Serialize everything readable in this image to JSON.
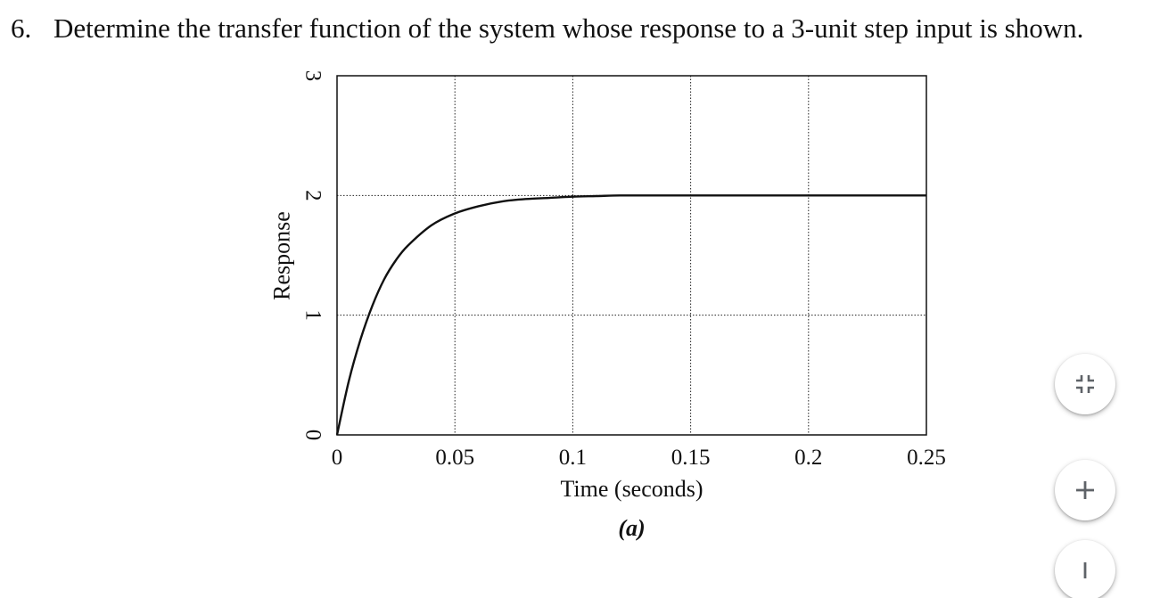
{
  "question": {
    "number": "6.",
    "text": "Determine the transfer function of the system whose response to a 3-unit step input is shown."
  },
  "chart_data": {
    "type": "line",
    "title": "",
    "xlabel": "Time (seconds)",
    "ylabel": "Response",
    "sublabel": "(a)",
    "xlim": [
      0,
      0.25
    ],
    "ylim": [
      0,
      3
    ],
    "x_ticks": [
      "0",
      "0.05",
      "0.1",
      "0.15",
      "0.2",
      "0.25"
    ],
    "y_ticks": [
      "0",
      "1",
      "2",
      "3"
    ],
    "grid": "dotted",
    "series": [
      {
        "x": [
          0,
          0.005,
          0.01,
          0.015,
          0.02,
          0.025,
          0.03,
          0.04,
          0.05,
          0.06,
          0.07,
          0.08,
          0.09,
          0.1,
          0.11,
          0.12,
          0.13,
          0.15,
          0.2,
          0.25
        ],
        "y": [
          0,
          0.45,
          0.8,
          1.08,
          1.3,
          1.46,
          1.58,
          1.75,
          1.85,
          1.91,
          1.95,
          1.97,
          1.98,
          1.99,
          1.995,
          2.0,
          2.0,
          2.0,
          2.0,
          2.0
        ]
      }
    ]
  },
  "controls": {
    "fit_icon": "fit-to-screen-icon",
    "zoom_in_icon": "plus-icon",
    "zoom_out_icon": "minus-icon"
  }
}
